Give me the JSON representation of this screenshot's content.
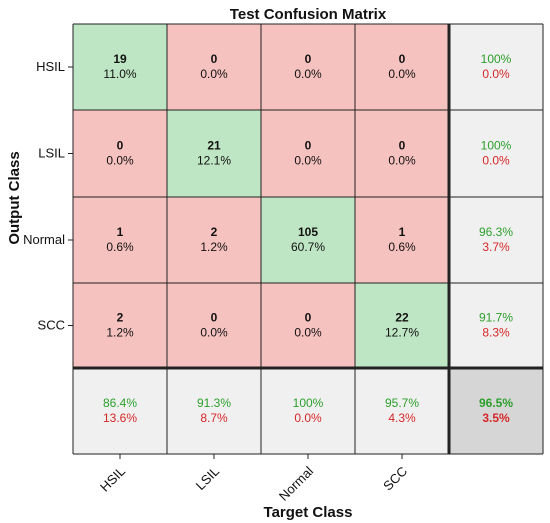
{
  "chart_data": {
    "type": "heatmap",
    "title": "Test Confusion Matrix",
    "xlabel": "Target Class",
    "ylabel": "Output Class",
    "classes": [
      "HSIL",
      "LSIL",
      "Normal",
      "SCC"
    ],
    "matrix": [
      [
        19,
        0,
        0,
        0
      ],
      [
        0,
        21,
        0,
        0
      ],
      [
        1,
        2,
        105,
        1
      ],
      [
        2,
        0,
        0,
        22
      ]
    ],
    "matrix_percent": [
      [
        "11.0%",
        "0.0%",
        "0.0%",
        "0.0%"
      ],
      [
        "0.0%",
        "12.1%",
        "0.0%",
        "0.0%"
      ],
      [
        "0.6%",
        "1.2%",
        "60.7%",
        "0.6%"
      ],
      [
        "1.2%",
        "0.0%",
        "0.0%",
        "12.7%"
      ]
    ],
    "row_summary": [
      [
        "100%",
        "0.0%"
      ],
      [
        "100%",
        "0.0%"
      ],
      [
        "96.3%",
        "3.7%"
      ],
      [
        "91.7%",
        "8.3%"
      ]
    ],
    "col_summary": [
      [
        "86.4%",
        "13.6%"
      ],
      [
        "91.3%",
        "8.7%"
      ],
      [
        "100%",
        "0.0%"
      ],
      [
        "95.7%",
        "4.3%"
      ]
    ],
    "overall": [
      "96.5%",
      "3.5%"
    ],
    "colors": {
      "correct": "#bfe6c4",
      "incorrect": "#f6c2bf",
      "summary": "#f0f0f0",
      "overall": "#d6d6d6",
      "good_text": "#2ca02c",
      "bad_text": "#d62728",
      "border": "#222222"
    }
  }
}
